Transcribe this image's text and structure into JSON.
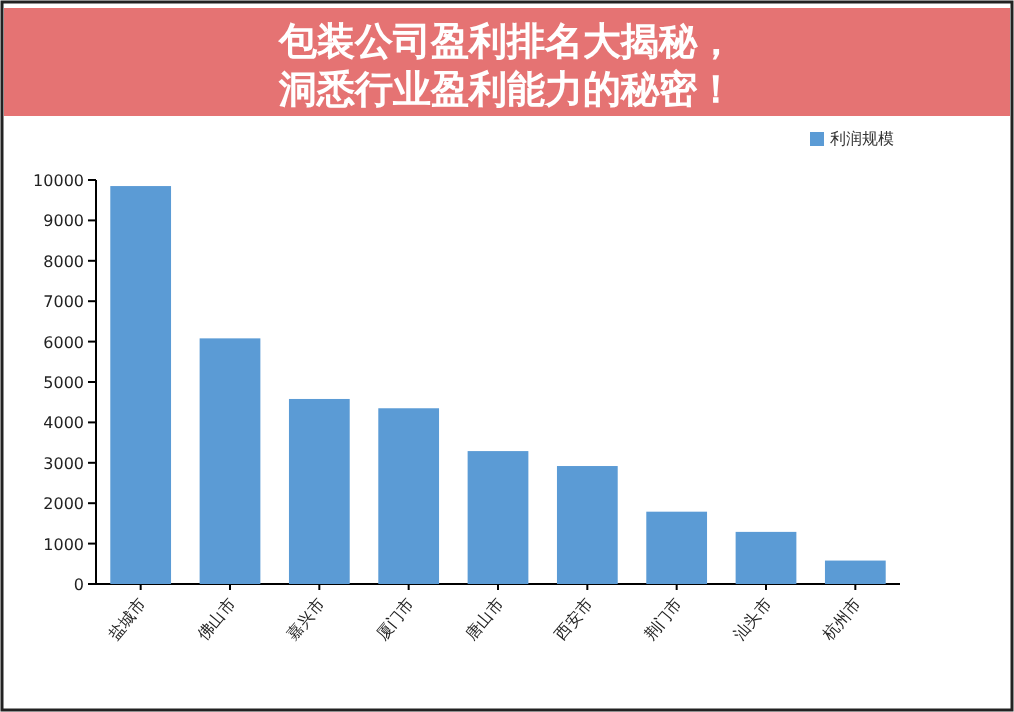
{
  "chart_data": {
    "type": "bar",
    "title": "包装公司盈利排名大揭秘，洞悉行业盈利能力的秘密！",
    "categories": [
      "盐城市",
      "佛山市",
      "嘉兴市",
      "厦门市",
      "唐山市",
      "西安市",
      "荆门市",
      "汕头市",
      "杭州市"
    ],
    "series": [
      {
        "name": "利润规模",
        "color": "#5b9bd5",
        "values": [
          9850,
          6080,
          4580,
          4350,
          3290,
          2920,
          1790,
          1290,
          580
        ]
      }
    ],
    "ylim": [
      0,
      10000
    ],
    "yticks": [
      0,
      1000,
      2000,
      3000,
      4000,
      5000,
      6000,
      7000,
      8000,
      9000,
      10000
    ],
    "legend": "top right"
  }
}
